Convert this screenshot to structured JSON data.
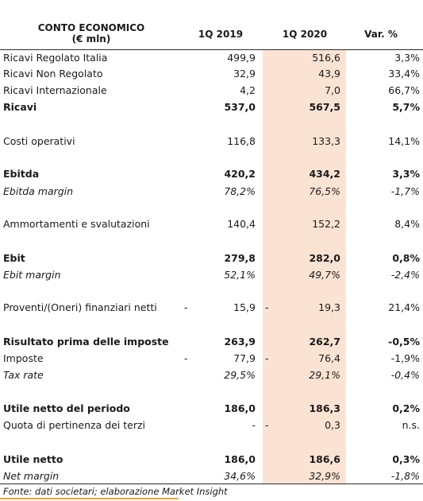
{
  "header": {
    "title_line1": "CONTO ECONOMICO",
    "title_line2": "(€ mln)",
    "col1": "1Q 2019",
    "col2": "1Q 2020",
    "col3": "Var. %"
  },
  "rows": [
    {
      "label": "Ricavi Regolato Italia",
      "v2019": "499,9",
      "v2020": "516,6",
      "var": "3,3%"
    },
    {
      "label": "Ricavi Non Regolato",
      "v2019": "32,9",
      "v2020": "43,9",
      "var": "33,4%"
    },
    {
      "label": "Ricavi Internazionale",
      "v2019": "4,2",
      "v2020": "7,0",
      "var": "66,7%"
    },
    {
      "label": "Ricavi",
      "v2019": "537,0",
      "v2020": "567,5",
      "var": "5,7%"
    },
    {
      "label": "Costi operativi",
      "v2019": "116,8",
      "v2020": "133,3",
      "var": "14,1%"
    },
    {
      "label": "Ebitda",
      "v2019": "420,2",
      "v2020": "434,2",
      "var": "3,3%"
    },
    {
      "label": "Ebitda margin",
      "v2019": "78,2%",
      "v2020": "76,5%",
      "var": "-1,7%"
    },
    {
      "label": "Ammortamenti e svalutazioni",
      "v2019": "140,4",
      "v2020": "152,2",
      "var": "8,4%"
    },
    {
      "label": "Ebit",
      "v2019": "279,8",
      "v2020": "282,0",
      "var": "0,8%"
    },
    {
      "label": "Ebit margin",
      "v2019": "52,1%",
      "v2020": "49,7%",
      "var": "-2,4%"
    },
    {
      "label": "Proventi/(Oneri) finanziari netti",
      "d2019": "-",
      "v2019": "15,9",
      "d2020": "-",
      "v2020": "19,3",
      "var": "21,4%"
    },
    {
      "label": "Risultato prima delle imposte",
      "v2019": "263,9",
      "v2020": "262,7",
      "var": "-0,5%"
    },
    {
      "label": "Imposte",
      "d2019": "-",
      "v2019": "77,9",
      "d2020": "-",
      "v2020": "76,4",
      "var": "-1,9%"
    },
    {
      "label": "Tax rate",
      "v2019": "29,5%",
      "v2020": "29,1%",
      "var": "-0,4%"
    },
    {
      "label": "Utile netto del periodo",
      "v2019": "186,0",
      "v2020": "186,3",
      "var": "0,2%"
    },
    {
      "label": "Quota di pertinenza dei terzi",
      "v2019": "-",
      "d2020": "-",
      "v2020": "0,3",
      "var": "n.s."
    },
    {
      "label": "Utile netto",
      "v2019": "186,0",
      "v2020": "186,6",
      "var": "0,3%"
    },
    {
      "label": "Net margin",
      "v2019": "34,6%",
      "v2020": "32,9%",
      "var": "-1,8%"
    }
  ],
  "source": "Fonte: dati societari; elaborazione Market Insight"
}
